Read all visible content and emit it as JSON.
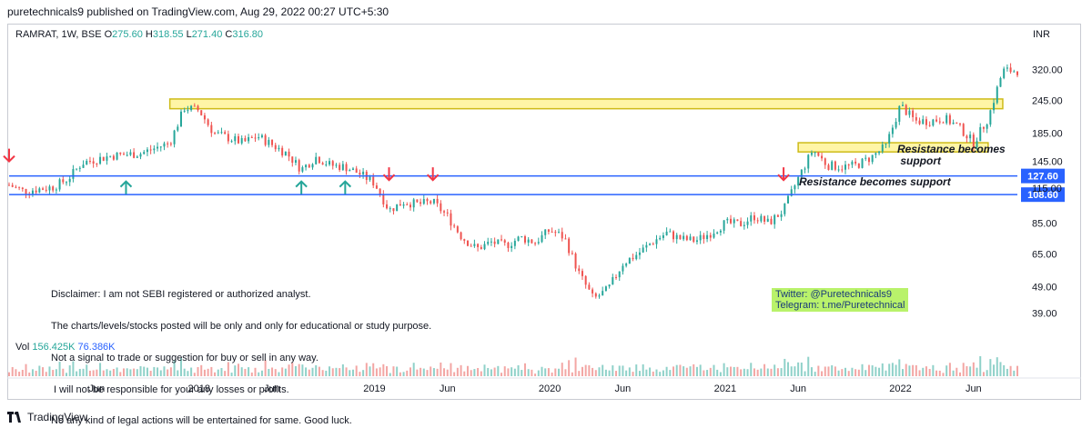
{
  "header": {
    "published": "puretechnicals9 published on TradingView.com, Aug 29, 2022 00:27 UTC+5:30",
    "symbol": "RAMRAT, 1W, BSE",
    "o_label": "O",
    "o_value": "275.60",
    "h_label": "H",
    "h_value": "318.55",
    "l_label": "L",
    "l_value": "271.40",
    "c_label": "C",
    "c_value": "316.80"
  },
  "currency": "INR",
  "volume": {
    "label": "Vol",
    "v1": "156.425K",
    "v2": "76.386K"
  },
  "disclaimer": [
    "Disclaimer: I am not SEBI registered or authorized analyst.",
    "The charts/levels/stocks posted will be only and only for educational or study purpose.",
    "Not a signal to trade or suggestion for buy or sell in any way.",
    " I will not be responsible for your any losses or profits.",
    "No any kind of legal actions will be entertained for same. Good luck."
  ],
  "social": {
    "twitter": "Twitter: @Puretechnicals9",
    "telegram": "Telegram: t.me/Puretechnical"
  },
  "annotations": {
    "resistance_upper": "Resistance becomes\n support",
    "resistance_lower": "Resistance becomes support"
  },
  "footer": {
    "brand": "TradingView"
  },
  "colors": {
    "up": "#26a69a",
    "down": "#ef5350",
    "level_line": "#2962ff",
    "zone": "#fff59d",
    "arrow_up": "#26a69a",
    "arrow_down": "#f23645"
  },
  "chart_data": {
    "type": "candlestick",
    "y_scale": "log",
    "ylim": [
      33,
      400
    ],
    "y_ticks": [
      "320.00",
      "245.00",
      "185.00",
      "145.00",
      "115.00",
      "85.00",
      "65.00",
      "49.00",
      "39.00"
    ],
    "x_ticks": [
      "Jun",
      "2018",
      "Jun",
      "2019",
      "Jun",
      "2020",
      "Jun",
      "2021",
      "Jun",
      "2022",
      "Jun"
    ],
    "price_levels": [
      {
        "value": 127.6,
        "label": "127.60"
      },
      {
        "value": 108.6,
        "label": "108.60"
      }
    ],
    "zones": [
      {
        "from_date": "2017-11",
        "to_date": "2022-08",
        "low": 228,
        "high": 248
      },
      {
        "from_date": "2021-06",
        "to_date": "2022-07",
        "low": 157,
        "high": 170
      }
    ],
    "arrows": [
      {
        "dir": "down",
        "date": "2016-12"
      },
      {
        "dir": "up",
        "date": "2017-08"
      },
      {
        "dir": "up",
        "date": "2018-08"
      },
      {
        "dir": "up",
        "date": "2018-11"
      },
      {
        "dir": "down",
        "date": "2019-02"
      },
      {
        "dir": "down",
        "date": "2019-05"
      },
      {
        "dir": "down",
        "date": "2021-05"
      }
    ],
    "series": [
      {
        "date": "2016-12",
        "price": 118
      },
      {
        "date": "2017-01",
        "price": 112
      },
      {
        "date": "2017-03",
        "price": 116
      },
      {
        "date": "2017-04",
        "price": 124
      },
      {
        "date": "2017-05",
        "price": 143
      },
      {
        "date": "2017-07",
        "price": 152
      },
      {
        "date": "2017-09",
        "price": 155
      },
      {
        "date": "2017-11",
        "price": 170
      },
      {
        "date": "2017-12",
        "price": 230
      },
      {
        "date": "2018-01",
        "price": 225
      },
      {
        "date": "2018-02",
        "price": 185
      },
      {
        "date": "2018-04",
        "price": 170
      },
      {
        "date": "2018-05",
        "price": 180
      },
      {
        "date": "2018-07",
        "price": 155
      },
      {
        "date": "2018-08",
        "price": 135
      },
      {
        "date": "2018-09",
        "price": 150
      },
      {
        "date": "2018-10",
        "price": 140
      },
      {
        "date": "2018-11",
        "price": 138
      },
      {
        "date": "2018-12",
        "price": 130
      },
      {
        "date": "2019-01",
        "price": 120
      },
      {
        "date": "2019-02",
        "price": 95
      },
      {
        "date": "2019-03",
        "price": 102
      },
      {
        "date": "2019-04",
        "price": 100
      },
      {
        "date": "2019-05",
        "price": 102
      },
      {
        "date": "2019-06",
        "price": 90
      },
      {
        "date": "2019-07",
        "price": 75
      },
      {
        "date": "2019-08",
        "price": 68
      },
      {
        "date": "2019-09",
        "price": 72
      },
      {
        "date": "2019-10",
        "price": 70
      },
      {
        "date": "2019-11",
        "price": 75
      },
      {
        "date": "2019-12",
        "price": 72
      },
      {
        "date": "2020-01",
        "price": 80
      },
      {
        "date": "2020-02",
        "price": 75
      },
      {
        "date": "2020-03",
        "price": 55
      },
      {
        "date": "2020-04",
        "price": 44
      },
      {
        "date": "2020-05",
        "price": 48
      },
      {
        "date": "2020-06",
        "price": 60
      },
      {
        "date": "2020-07",
        "price": 65
      },
      {
        "date": "2020-08",
        "price": 72
      },
      {
        "date": "2020-09",
        "price": 78
      },
      {
        "date": "2020-10",
        "price": 74
      },
      {
        "date": "2020-11",
        "price": 73
      },
      {
        "date": "2020-12",
        "price": 78
      },
      {
        "date": "2021-01",
        "price": 85
      },
      {
        "date": "2021-02",
        "price": 84
      },
      {
        "date": "2021-03",
        "price": 90
      },
      {
        "date": "2021-04",
        "price": 85
      },
      {
        "date": "2021-05",
        "price": 95
      },
      {
        "date": "2021-06",
        "price": 125
      },
      {
        "date": "2021-07",
        "price": 160
      },
      {
        "date": "2021-08",
        "price": 140
      },
      {
        "date": "2021-09",
        "price": 138
      },
      {
        "date": "2021-10",
        "price": 140
      },
      {
        "date": "2021-11",
        "price": 150
      },
      {
        "date": "2021-12",
        "price": 165
      },
      {
        "date": "2022-01",
        "price": 235
      },
      {
        "date": "2022-02",
        "price": 205
      },
      {
        "date": "2022-03",
        "price": 205
      },
      {
        "date": "2022-04",
        "price": 210
      },
      {
        "date": "2022-05",
        "price": 195
      },
      {
        "date": "2022-06",
        "price": 170
      },
      {
        "date": "2022-07",
        "price": 210
      },
      {
        "date": "2022-08",
        "price": 316.8
      }
    ]
  }
}
